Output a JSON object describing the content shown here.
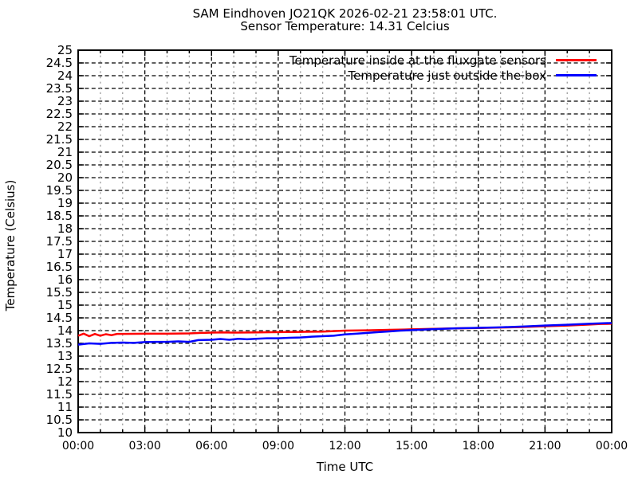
{
  "chart_data": {
    "type": "line",
    "title": "SAM Eindhoven JO21QK 2026-02-21 23:58:01 UTC.",
    "subtitle": "Sensor Temperature: 14.31 Celcius",
    "xlabel": "Time UTC",
    "ylabel": "Temperature (Celsius)",
    "xlim_hours": [
      0,
      24
    ],
    "ylim": [
      10,
      25
    ],
    "y_tick_step": 0.5,
    "x_major_tick_hours": 3,
    "x_minor_tick_hours": 1,
    "x_tick_labels": [
      "00:00",
      "03:00",
      "06:00",
      "09:00",
      "12:00",
      "15:00",
      "18:00",
      "21:00",
      "00:00"
    ],
    "grid": {
      "horizontal": "black-dashed-every-0.5",
      "vertical_major": "black-dashed-every-3h",
      "vertical_minor": "gray-dashed-every-1h"
    },
    "legend_position": "top-right-inside",
    "colors": {
      "background": "#ffffff",
      "text": "#000000",
      "axis": "#000000",
      "minor_grid": "#9c9c9c",
      "series_inside": "#ff0000",
      "series_outside": "#0000ff"
    },
    "series": [
      {
        "name": "Temperature inside at the fluxgate sensors",
        "color": "#ff0000",
        "points_hours_celsius": [
          [
            0,
            13.8
          ],
          [
            0.25,
            13.88
          ],
          [
            0.5,
            13.78
          ],
          [
            0.75,
            13.87
          ],
          [
            1,
            13.8
          ],
          [
            1.25,
            13.86
          ],
          [
            1.5,
            13.82
          ],
          [
            1.75,
            13.87
          ],
          [
            2,
            13.87
          ],
          [
            3,
            13.88
          ],
          [
            4,
            13.88
          ],
          [
            5,
            13.89
          ],
          [
            5.5,
            13.91
          ],
          [
            6,
            13.92
          ],
          [
            6.5,
            13.93
          ],
          [
            7,
            13.92
          ],
          [
            8,
            13.93
          ],
          [
            9,
            13.94
          ],
          [
            10,
            13.95
          ],
          [
            11,
            13.96
          ],
          [
            11.5,
            13.98
          ],
          [
            12,
            14.0
          ],
          [
            13,
            14.01
          ],
          [
            14,
            14.03
          ],
          [
            15,
            14.05
          ],
          [
            16,
            14.07
          ],
          [
            17,
            14.09
          ],
          [
            18,
            14.1
          ],
          [
            19,
            14.12
          ],
          [
            20,
            14.14
          ],
          [
            21,
            14.17
          ],
          [
            22,
            14.2
          ],
          [
            23,
            14.24
          ],
          [
            23.5,
            14.26
          ],
          [
            24,
            14.27
          ]
        ]
      },
      {
        "name": "Temperature just outside the box",
        "color": "#0000ff",
        "points_hours_celsius": [
          [
            0,
            13.45
          ],
          [
            0.5,
            13.5
          ],
          [
            1,
            13.48
          ],
          [
            1.5,
            13.52
          ],
          [
            2,
            13.53
          ],
          [
            2.5,
            13.52
          ],
          [
            3,
            13.55
          ],
          [
            3.5,
            13.56
          ],
          [
            4,
            13.56
          ],
          [
            4.5,
            13.58
          ],
          [
            5,
            13.56
          ],
          [
            5.4,
            13.63
          ],
          [
            6,
            13.64
          ],
          [
            6.4,
            13.67
          ],
          [
            6.8,
            13.64
          ],
          [
            7.2,
            13.68
          ],
          [
            7.6,
            13.66
          ],
          [
            8,
            13.68
          ],
          [
            8.5,
            13.7
          ],
          [
            9,
            13.7
          ],
          [
            9.5,
            13.72
          ],
          [
            10,
            13.73
          ],
          [
            10.5,
            13.76
          ],
          [
            11,
            13.78
          ],
          [
            11.5,
            13.8
          ],
          [
            12,
            13.85
          ],
          [
            12.5,
            13.88
          ],
          [
            13,
            13.91
          ],
          [
            13.5,
            13.94
          ],
          [
            14,
            13.97
          ],
          [
            14.5,
            14.0
          ],
          [
            15,
            14.02
          ],
          [
            15.5,
            14.04
          ],
          [
            16,
            14.06
          ],
          [
            17,
            14.09
          ],
          [
            18,
            14.11
          ],
          [
            19,
            14.13
          ],
          [
            20,
            14.16
          ],
          [
            21,
            14.2
          ],
          [
            22,
            14.23
          ],
          [
            23,
            14.27
          ],
          [
            24,
            14.3
          ]
        ]
      }
    ]
  }
}
